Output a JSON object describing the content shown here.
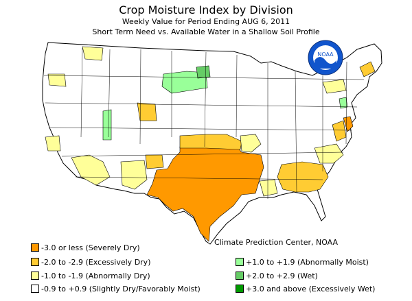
{
  "title": "Crop Moisture Index by Division",
  "subtitle": "Weekly Value for Period Ending AUG  6, 2011",
  "subtitle2": "Short Term Need vs. Available Water in a Shallow Soil Profile",
  "logo_text": "NOAA",
  "credit": "Climate Prediction Center, NOAA",
  "colors": {
    "severely_dry": "#ff9900",
    "excessively_dry": "#ffcc33",
    "abnormally_dry": "#ffff99",
    "slightly_dry_moist": "#ffffff",
    "abnormally_moist": "#99ff99",
    "wet": "#66cc66",
    "excessively_wet": "#009900",
    "border": "#000000",
    "noaa_blue": "#1155cc"
  },
  "legend": [
    {
      "label": "-3.0 or less (Severely Dry)",
      "color": "#ff9900"
    },
    {
      "label": "-2.0 to -2.9 (Excessively Dry)",
      "color": "#ffcc33"
    },
    {
      "label": "-1.0 to -1.9 (Abnormally Dry)",
      "color": "#ffff99"
    },
    {
      "label": "-0.9 to +0.9 (Slightly Dry/Favorably Moist)",
      "color": "#ffffff"
    },
    {
      "label": "+1.0 to +1.9 (Abnormally Moist)",
      "color": "#99ff99"
    },
    {
      "label": "+2.0 to +2.9 (Wet)",
      "color": "#66cc66"
    },
    {
      "label": "+3.0 and above (Excessively Wet)",
      "color": "#009900"
    }
  ]
}
